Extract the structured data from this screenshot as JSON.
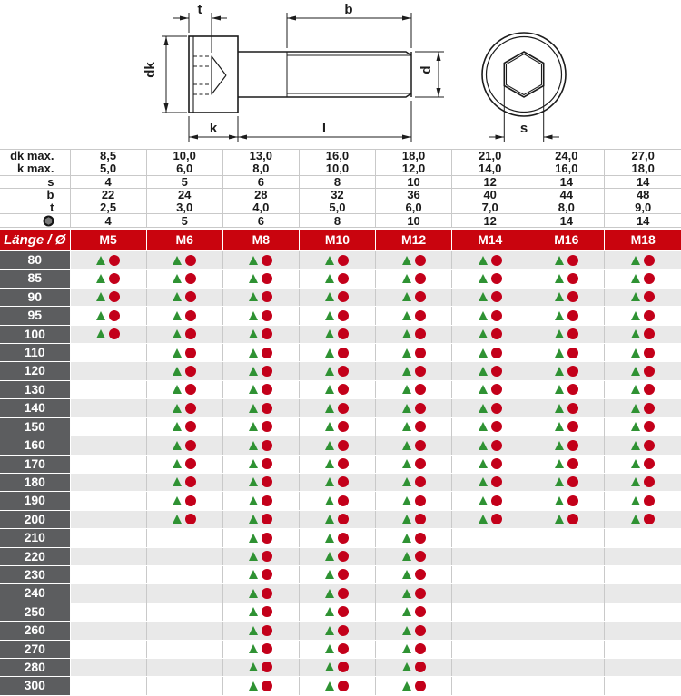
{
  "colors": {
    "red": "#c9040e",
    "darkgray": "#5c5d5f",
    "rowgray": "#e9e9e9",
    "green": "#2f9233",
    "markerred": "#c3001a"
  },
  "drawing": {
    "dimension_labels": {
      "t": "t",
      "b": "b",
      "dk": "dk",
      "k": "k",
      "l": "l",
      "d": "d",
      "s": "s"
    }
  },
  "spec_table": {
    "rows": [
      {
        "label": "dk max.",
        "values": [
          "8,5",
          "10,0",
          "13,0",
          "16,0",
          "18,0",
          "21,0",
          "24,0",
          "27,0"
        ]
      },
      {
        "label": "k max.",
        "values": [
          "5,0",
          "6,0",
          "8,0",
          "10,0",
          "12,0",
          "14,0",
          "16,0",
          "18,0"
        ]
      },
      {
        "label": "s",
        "values": [
          "4",
          "5",
          "6",
          "8",
          "10",
          "12",
          "14",
          "14"
        ]
      },
      {
        "label": "b",
        "values": [
          "22",
          "24",
          "28",
          "32",
          "36",
          "40",
          "44",
          "48"
        ]
      },
      {
        "label": "t",
        "values": [
          "2,5",
          "3,0",
          "4,0",
          "5,0",
          "6,0",
          "7,0",
          "8,0",
          "9,0"
        ]
      },
      {
        "label": "",
        "icon": "hex-socket-icon",
        "values": [
          "4",
          "5",
          "6",
          "8",
          "10",
          "12",
          "14",
          "14"
        ]
      }
    ]
  },
  "size_table": {
    "corner_label": "Länge / Ø",
    "sizes": [
      "M5",
      "M6",
      "M8",
      "M10",
      "M12",
      "M14",
      "M16",
      "M18"
    ],
    "lengths": [
      "80",
      "85",
      "90",
      "95",
      "100",
      "110",
      "120",
      "130",
      "140",
      "150",
      "160",
      "170",
      "180",
      "190",
      "200",
      "210",
      "220",
      "230",
      "240",
      "250",
      "260",
      "270",
      "280",
      "300"
    ],
    "availability": [
      [
        1,
        1,
        1,
        1,
        1,
        1,
        1,
        1
      ],
      [
        1,
        1,
        1,
        1,
        1,
        1,
        1,
        1
      ],
      [
        1,
        1,
        1,
        1,
        1,
        1,
        1,
        1
      ],
      [
        1,
        1,
        1,
        1,
        1,
        1,
        1,
        1
      ],
      [
        1,
        1,
        1,
        1,
        1,
        1,
        1,
        1
      ],
      [
        0,
        1,
        1,
        1,
        1,
        1,
        1,
        1
      ],
      [
        0,
        1,
        1,
        1,
        1,
        1,
        1,
        1
      ],
      [
        0,
        1,
        1,
        1,
        1,
        1,
        1,
        1
      ],
      [
        0,
        1,
        1,
        1,
        1,
        1,
        1,
        1
      ],
      [
        0,
        1,
        1,
        1,
        1,
        1,
        1,
        1
      ],
      [
        0,
        1,
        1,
        1,
        1,
        1,
        1,
        1
      ],
      [
        0,
        1,
        1,
        1,
        1,
        1,
        1,
        1
      ],
      [
        0,
        1,
        1,
        1,
        1,
        1,
        1,
        1
      ],
      [
        0,
        1,
        1,
        1,
        1,
        1,
        1,
        1
      ],
      [
        0,
        1,
        1,
        1,
        1,
        1,
        1,
        1
      ],
      [
        0,
        0,
        1,
        1,
        1,
        0,
        0,
        0
      ],
      [
        0,
        0,
        1,
        1,
        1,
        0,
        0,
        0
      ],
      [
        0,
        0,
        1,
        1,
        1,
        0,
        0,
        0
      ],
      [
        0,
        0,
        1,
        1,
        1,
        0,
        0,
        0
      ],
      [
        0,
        0,
        1,
        1,
        1,
        0,
        0,
        0
      ],
      [
        0,
        0,
        1,
        1,
        1,
        0,
        0,
        0
      ],
      [
        0,
        0,
        1,
        1,
        1,
        0,
        0,
        0
      ],
      [
        0,
        0,
        1,
        1,
        1,
        0,
        0,
        0
      ],
      [
        0,
        0,
        1,
        1,
        1,
        0,
        0,
        0
      ]
    ]
  }
}
